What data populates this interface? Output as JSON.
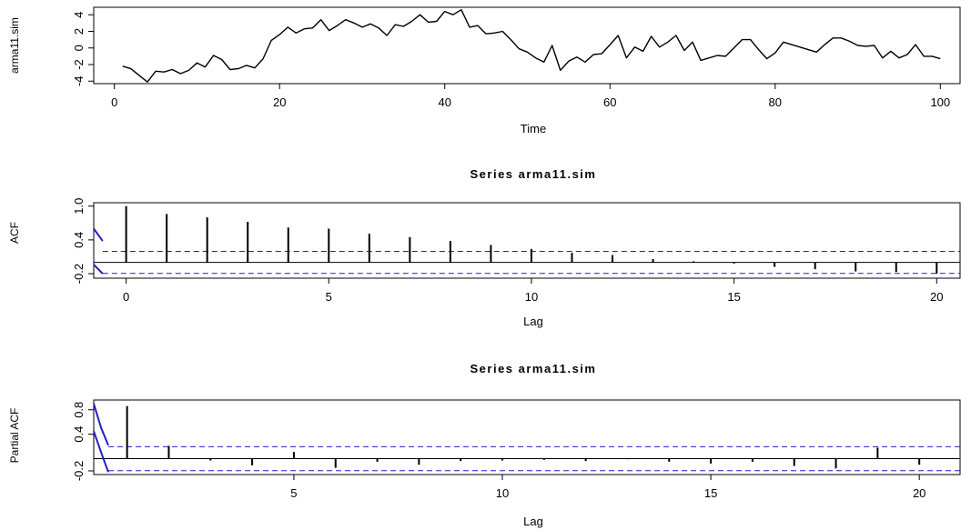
{
  "colors": {
    "line": "#000000",
    "ci": "#1f1fbf"
  },
  "chart_data": [
    {
      "type": "line",
      "title": "",
      "xlabel": "Time",
      "ylabel": "arma11.sim",
      "xlim": [
        -2.5,
        102.5
      ],
      "ylim": [
        -4.3,
        4.9
      ],
      "xticks": [
        0,
        20,
        40,
        60,
        80,
        100
      ],
      "yticks": [
        -4,
        -2,
        0,
        2,
        4
      ],
      "grid": false,
      "x": [
        1,
        2,
        3,
        4,
        5,
        6,
        7,
        8,
        9,
        10,
        11,
        12,
        13,
        14,
        15,
        16,
        17,
        18,
        19,
        20,
        21,
        22,
        23,
        24,
        25,
        26,
        27,
        28,
        29,
        30,
        31,
        32,
        33,
        34,
        35,
        36,
        37,
        38,
        39,
        40,
        41,
        42,
        43,
        44,
        45,
        46,
        47,
        48,
        49,
        50,
        51,
        52,
        53,
        54,
        55,
        56,
        57,
        58,
        59,
        60,
        61,
        62,
        63,
        64,
        65,
        66,
        67,
        68,
        69,
        70,
        71,
        72,
        73,
        74,
        75,
        76,
        77,
        78,
        79,
        80,
        81,
        82,
        83,
        84,
        85,
        86,
        87,
        88,
        89,
        90,
        91,
        92,
        93,
        94,
        95,
        96,
        97,
        98,
        99,
        100
      ],
      "values": [
        -2.2,
        -2.5,
        -3.3,
        -4.1,
        -2.8,
        -2.9,
        -2.6,
        -3.1,
        -2.7,
        -1.8,
        -2.3,
        -0.9,
        -1.4,
        -2.6,
        -2.5,
        -2.1,
        -2.4,
        -1.3,
        0.9,
        1.6,
        2.5,
        1.8,
        2.3,
        2.4,
        3.4,
        2.1,
        2.7,
        3.4,
        3.0,
        2.5,
        2.9,
        2.4,
        1.5,
        2.8,
        2.6,
        3.2,
        4.0,
        3.1,
        3.2,
        4.4,
        4.0,
        4.6,
        2.5,
        2.7,
        1.7,
        1.8,
        2.0,
        1.0,
        -0.1,
        -0.5,
        -1.2,
        -1.7,
        0.3,
        -2.7,
        -1.6,
        -1.1,
        -1.7,
        -0.8,
        -0.7,
        0.4,
        1.5,
        -1.2,
        0.1,
        -0.4,
        1.4,
        0.1,
        0.7,
        1.5,
        -0.3,
        0.7,
        -1.5,
        -1.2,
        -0.9,
        -1.0,
        0.0,
        1.0,
        1.0,
        -0.2,
        -1.3,
        -0.6,
        0.7,
        0.4,
        0.1,
        -0.2,
        -0.5,
        0.4,
        1.2,
        1.2,
        0.8,
        0.3,
        0.2,
        0.3,
        -1.2,
        -0.4,
        -1.2,
        -0.8,
        0.4,
        -1.0,
        -1.0,
        -1.3
      ]
    },
    {
      "type": "bar",
      "title": "Series  arma11.sim",
      "xlabel": "Lag",
      "ylabel": "ACF",
      "xlim": [
        -0.8,
        20.6
      ],
      "ylim": [
        -0.28,
        1.06
      ],
      "xticks": [
        0,
        5,
        10,
        15,
        20
      ],
      "yticks": [
        -0.2,
        0.4,
        1.0
      ],
      "ytick_labels": [
        "-0.2",
        "0.4",
        "1.0"
      ],
      "ci": 0.196,
      "x": [
        0,
        1,
        2,
        3,
        4,
        5,
        6,
        7,
        8,
        9,
        10,
        11,
        12,
        13,
        14,
        15,
        16,
        17,
        18,
        19,
        20
      ],
      "values": [
        1.0,
        0.86,
        0.8,
        0.72,
        0.62,
        0.6,
        0.51,
        0.45,
        0.38,
        0.31,
        0.24,
        0.17,
        0.13,
        0.06,
        0.02,
        -0.02,
        -0.08,
        -0.12,
        -0.16,
        -0.17,
        -0.2
      ],
      "ci_curve": {
        "x": [
          -0.8,
          -0.58
        ],
        "upper": [
          0.6,
          0.38
        ],
        "lower": [
          -0.04,
          -0.2
        ]
      }
    },
    {
      "type": "bar",
      "title": "Series  arma11.sim",
      "xlabel": "Lag",
      "ylabel": "Partial ACF",
      "xlim": [
        0.2,
        21.0
      ],
      "ylim": [
        -0.26,
        0.96
      ],
      "xticks": [
        5,
        10,
        15,
        20
      ],
      "yticks": [
        -0.2,
        0.4,
        0.8
      ],
      "ytick_labels": [
        "-0.2",
        "0.4",
        "0.8"
      ],
      "ci": 0.196,
      "x": [
        1,
        2,
        3,
        4,
        5,
        6,
        7,
        8,
        9,
        10,
        11,
        12,
        13,
        14,
        15,
        16,
        17,
        18,
        19,
        20
      ],
      "values": [
        0.86,
        0.21,
        -0.03,
        -0.11,
        0.11,
        -0.15,
        -0.05,
        -0.1,
        -0.04,
        -0.03,
        -0.02,
        -0.04,
        -0.01,
        -0.05,
        -0.08,
        -0.05,
        -0.12,
        -0.16,
        0.18,
        -0.1
      ],
      "ci_curve": {
        "x": [
          0.2,
          0.38,
          0.55
        ],
        "upper": [
          0.9,
          0.5,
          0.22
        ],
        "lower": [
          0.45,
          0.1,
          -0.22
        ]
      }
    }
  ]
}
